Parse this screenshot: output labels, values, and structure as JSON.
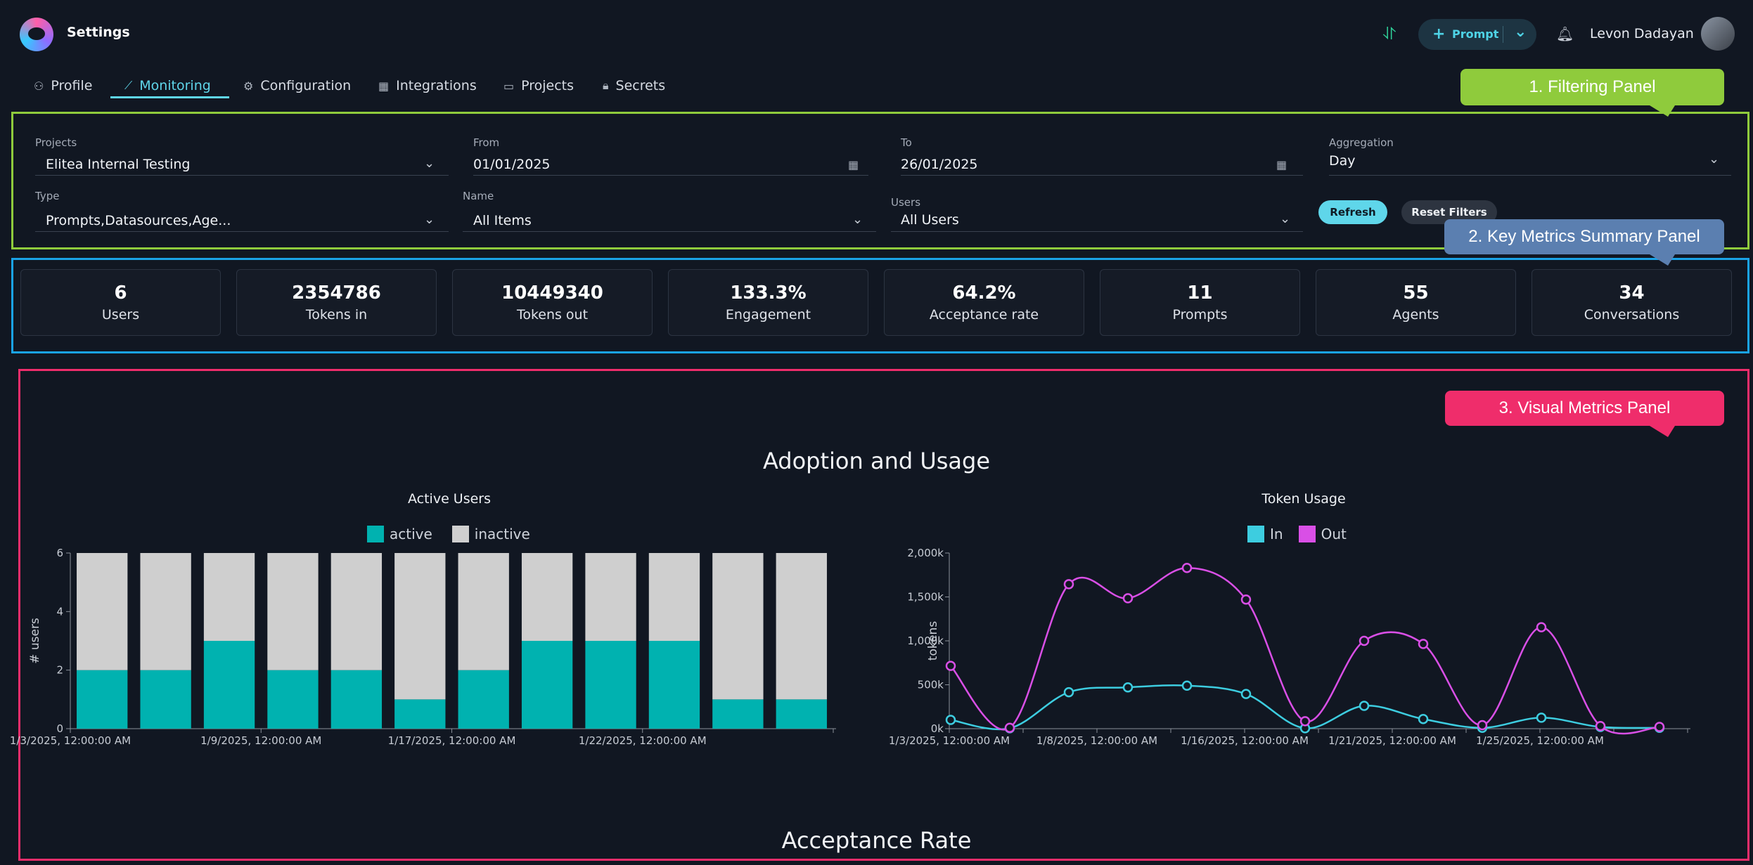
{
  "header": {
    "title": "Settings",
    "prompt_button": "Prompt",
    "user_name": "Levon Dadayan"
  },
  "tabs": [
    {
      "label": "Profile",
      "icon": "person-icon"
    },
    {
      "label": "Monitoring",
      "icon": "chart-icon"
    },
    {
      "label": "Configuration",
      "icon": "gear-icon"
    },
    {
      "label": "Integrations",
      "icon": "grid-icon"
    },
    {
      "label": "Projects",
      "icon": "briefcase-icon"
    },
    {
      "label": "Secrets",
      "icon": "lock-icon"
    }
  ],
  "annotations": {
    "filtering": "1. Filtering Panel",
    "metrics": "2. Key Metrics Summary Panel",
    "visual": "3. Visual Metrics Panel"
  },
  "filters": {
    "projects": {
      "label": "Projects",
      "value": "Elitea Internal Testing"
    },
    "from": {
      "label": "From",
      "value": "01/01/2025"
    },
    "to": {
      "label": "To",
      "value": "26/01/2025"
    },
    "aggregation": {
      "label": "Aggregation",
      "value": "Day"
    },
    "type": {
      "label": "Type",
      "value": "Prompts,Datasources,Age..."
    },
    "name": {
      "label": "Name",
      "value": "All Items"
    },
    "users": {
      "label": "Users",
      "value": "All Users"
    },
    "refresh": "Refresh",
    "reset": "Reset Filters"
  },
  "metrics": [
    {
      "value": "6",
      "label": "Users"
    },
    {
      "value": "2354786",
      "label": "Tokens in"
    },
    {
      "value": "10449340",
      "label": "Tokens out"
    },
    {
      "value": "133.3%",
      "label": "Engagement"
    },
    {
      "value": "64.2%",
      "label": "Acceptance rate"
    },
    {
      "value": "11",
      "label": "Prompts"
    },
    {
      "value": "55",
      "label": "Agents"
    },
    {
      "value": "34",
      "label": "Conversations"
    }
  ],
  "sections": {
    "adoption": "Adoption and Usage",
    "acceptance": "Acceptance Rate"
  },
  "colors": {
    "active": "#00b2b0",
    "inactive": "#cfcfcf",
    "tokens_in": "#3dcde0",
    "tokens_out": "#d94fe6",
    "filter_frame": "#8fcb3c",
    "metrics_frame": "#1aa3e6",
    "visual_frame": "#ef2d6b"
  },
  "chart_data": [
    {
      "type": "bar",
      "stacked": true,
      "title": "Active Users",
      "ylabel": "# users",
      "ylim": [
        0,
        6
      ],
      "yticks": [
        "0",
        "2",
        "4",
        "6"
      ],
      "xtick_labels": [
        "1/3/2025, 12:00:00 AM",
        "1/9/2025, 12:00:00 AM",
        "1/17/2025, 12:00:00 AM",
        "1/22/2025, 12:00:00 AM"
      ],
      "legend": "top",
      "series": [
        {
          "name": "active",
          "values": [
            2,
            2,
            3,
            2,
            2,
            1,
            2,
            3,
            3,
            3,
            1,
            1
          ]
        },
        {
          "name": "inactive",
          "values": [
            4,
            4,
            3,
            4,
            4,
            5,
            4,
            3,
            3,
            3,
            5,
            5
          ]
        }
      ]
    },
    {
      "type": "line",
      "title": "Token Usage",
      "ylabel": "tokens",
      "ylim": [
        0,
        2000000
      ],
      "yticks": [
        "0k",
        "500k",
        "1,000k",
        "1,500k",
        "2,000k"
      ],
      "xtick_labels": [
        "1/3/2025, 12:00:00 AM",
        "1/8/2025, 12:00:00 AM",
        "1/16/2025, 12:00:00 AM",
        "1/21/2025, 12:00:00 AM",
        "1/25/2025, 12:00:00 AM"
      ],
      "legend": "top",
      "series": [
        {
          "name": "In",
          "values": [
            100000,
            5000,
            415000,
            470000,
            490000,
            395000,
            5000,
            260000,
            110000,
            10000,
            125000,
            20000,
            10000
          ]
        },
        {
          "name": "Out",
          "values": [
            715000,
            10000,
            1645000,
            1485000,
            1830000,
            1470000,
            85000,
            1000000,
            965000,
            40000,
            1155000,
            30000,
            20000
          ]
        }
      ]
    }
  ]
}
